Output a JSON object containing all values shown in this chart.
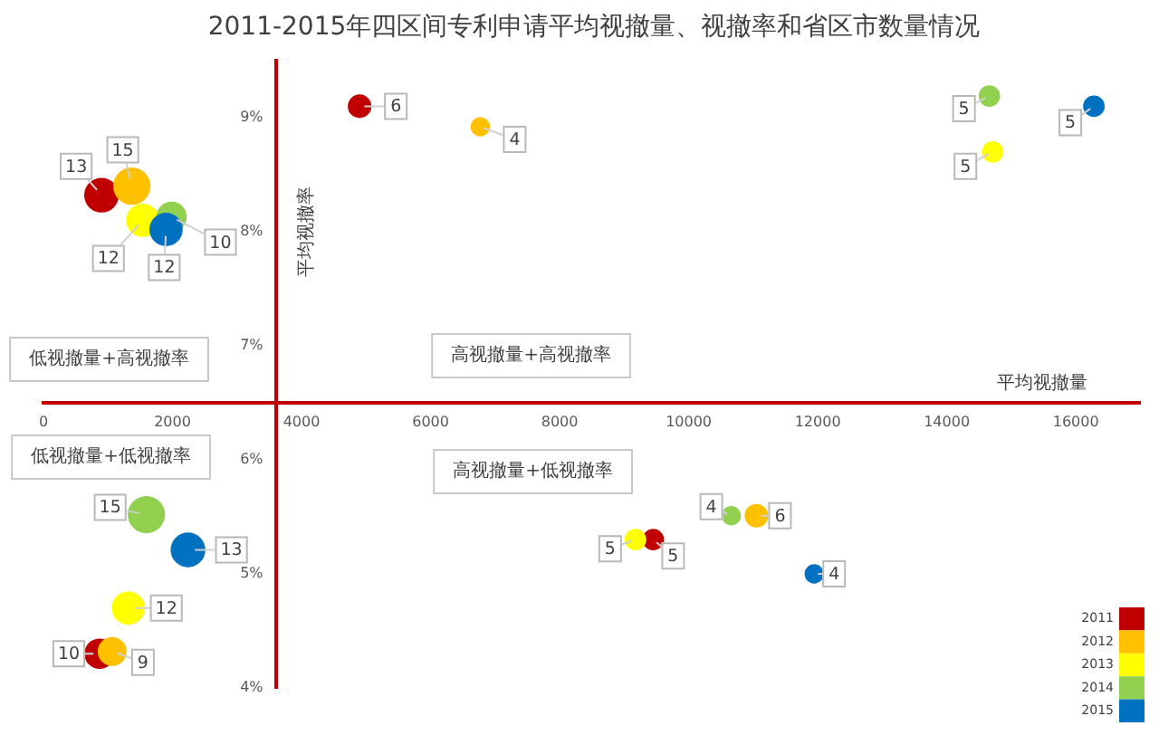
{
  "chart_data": {
    "type": "bubble",
    "title": "2011-2015年四区间专利申请平均视撤量、视撤率和省区市数量情况",
    "xlabel": "平均视撤量",
    "ylabel": "平均视撤率",
    "xlim": [
      0,
      17000
    ],
    "xticks": [
      0,
      2000,
      4000,
      6000,
      8000,
      10000,
      12000,
      14000,
      16000
    ],
    "ylim": [
      4,
      9.5
    ],
    "yticks": [
      {
        "value": 4,
        "label": "4%"
      },
      {
        "value": 5,
        "label": "5%"
      },
      {
        "value": 6,
        "label": "6%"
      },
      {
        "value": 7,
        "label": "7%"
      },
      {
        "value": 8,
        "label": "8%"
      },
      {
        "value": 9,
        "label": "9%"
      }
    ],
    "annotations": [
      "低视撤量+高视撤率",
      "高视撤量+高视撤率",
      "低视撤量+低视撤率",
      "高视撤量+低视撤率"
    ],
    "legend": "bottom right",
    "series": [
      {
        "name": "2011",
        "color": "#c00000",
        "x": [
          900,
          870,
          4900,
          9450
        ],
        "values": [
          8.32,
          4.3,
          9.1,
          5.3
        ],
        "sizes": [
          13,
          10,
          6,
          5
        ],
        "value_labels": [
          "13",
          "10",
          "6",
          "5"
        ]
      },
      {
        "name": "2012",
        "color": "#ffc000",
        "x": [
          1370,
          1065,
          6770,
          11050
        ],
        "values": [
          8.4,
          4.32,
          8.92,
          5.51
        ],
        "sizes": [
          15,
          9,
          4,
          6
        ],
        "value_labels": [
          "15",
          "9",
          "4",
          "6"
        ]
      },
      {
        "name": "2013",
        "color": "#ffff00",
        "x": [
          1540,
          1315,
          14710,
          9175
        ],
        "values": [
          8.1,
          4.7,
          8.7,
          5.3
        ],
        "sizes": [
          12,
          12,
          5,
          5
        ],
        "value_labels": [
          "12",
          "12",
          "5",
          "5"
        ]
      },
      {
        "name": "2014",
        "color": "#92d050",
        "x": [
          1985,
          1595,
          14660,
          10660
        ],
        "values": [
          8.13,
          5.52,
          9.19,
          5.51
        ],
        "sizes": [
          10,
          15,
          5,
          4
        ],
        "value_labels": [
          "10",
          "15",
          "5",
          "4"
        ]
      },
      {
        "name": "2015",
        "color": "#0070c0",
        "x": [
          1900,
          2240,
          16280,
          11945
        ],
        "values": [
          8.02,
          5.21,
          9.1,
          5.0
        ],
        "sizes": [
          12,
          13,
          5,
          4
        ],
        "value_labels": [
          "12",
          "13",
          "5",
          "4"
        ]
      }
    ]
  }
}
